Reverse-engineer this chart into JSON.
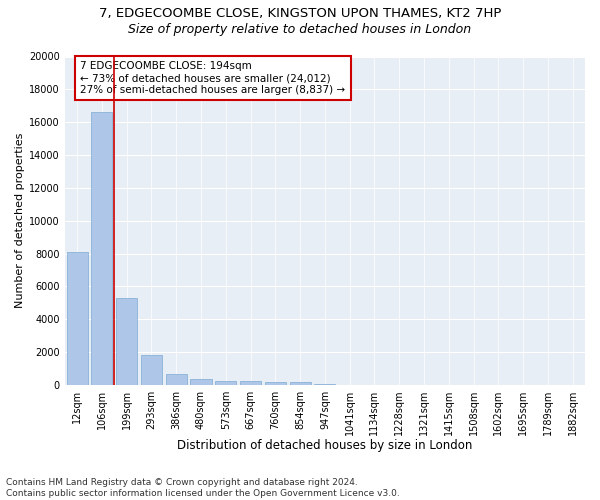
{
  "title1": "7, EDGECOOMBE CLOSE, KINGSTON UPON THAMES, KT2 7HP",
  "title2": "Size of property relative to detached houses in London",
  "xlabel": "Distribution of detached houses by size in London",
  "ylabel": "Number of detached properties",
  "categories": [
    "12sqm",
    "106sqm",
    "199sqm",
    "293sqm",
    "386sqm",
    "480sqm",
    "573sqm",
    "667sqm",
    "760sqm",
    "854sqm",
    "947sqm",
    "1041sqm",
    "1134sqm",
    "1228sqm",
    "1321sqm",
    "1415sqm",
    "1508sqm",
    "1602sqm",
    "1695sqm",
    "1789sqm",
    "1882sqm"
  ],
  "values": [
    8100,
    16600,
    5300,
    1850,
    680,
    360,
    270,
    220,
    190,
    160,
    50,
    0,
    0,
    0,
    0,
    0,
    0,
    0,
    0,
    0,
    0
  ],
  "bar_color": "#aec6e8",
  "bar_edge_color": "#6a9fcb",
  "vline_x": 1.5,
  "vline_color": "#cc0000",
  "annotation_text": "7 EDGECOOMBE CLOSE: 194sqm\n← 73% of detached houses are smaller (24,012)\n27% of semi-detached houses are larger (8,837) →",
  "annotation_box_color": "#ffffff",
  "annotation_box_edge": "#cc0000",
  "ylim": [
    0,
    20000
  ],
  "yticks": [
    0,
    2000,
    4000,
    6000,
    8000,
    10000,
    12000,
    14000,
    16000,
    18000,
    20000
  ],
  "bg_color": "#e8eef5",
  "grid_color": "#ffffff",
  "footnote": "Contains HM Land Registry data © Crown copyright and database right 2024.\nContains public sector information licensed under the Open Government Licence v3.0.",
  "title1_fontsize": 9.5,
  "title2_fontsize": 9,
  "xlabel_fontsize": 8.5,
  "ylabel_fontsize": 8,
  "tick_fontsize": 7,
  "annot_fontsize": 7.5,
  "footnote_fontsize": 6.5
}
